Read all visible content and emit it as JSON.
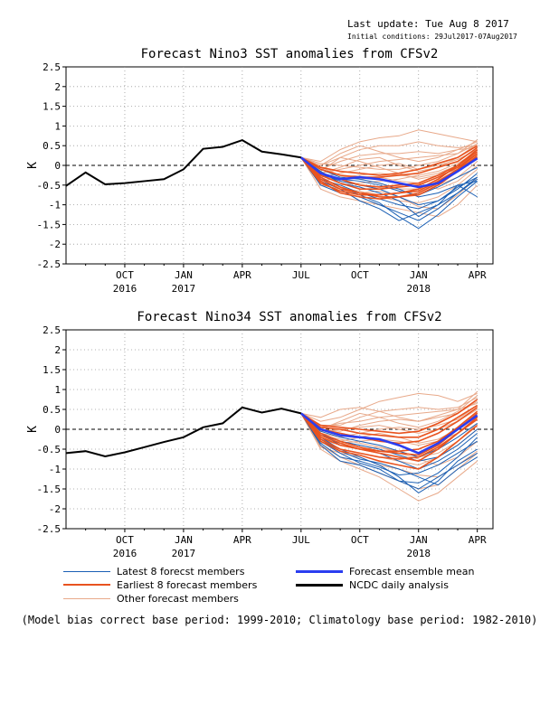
{
  "header": {
    "last_update": "Last update: Tue Aug 8 2017",
    "initial_conditions": "Initial conditions: 29Jul2017-07Aug2017"
  },
  "colors": {
    "latest": "#1a5fb4",
    "earliest": "#e8531f",
    "other": "#e8a98a",
    "mean": "#2b3df0",
    "analysis": "#000000"
  },
  "legend": {
    "latest": "Latest 8 forecst members",
    "earliest": "Earliest 8 forecast members",
    "other": "Other forecast members",
    "mean": "Forecast ensemble mean",
    "analysis": "NCDC daily analysis"
  },
  "footnote": "(Model bias correct base period: 1999-2010; Climatology base period: 1982-2010)",
  "chart_data": [
    {
      "type": "line",
      "title": "Forecast Nino3 SST anomalies from CFSv2",
      "ylabel": "K",
      "ylim": [
        -2.5,
        2.5
      ],
      "yticks": [
        "2.5",
        "2",
        "1.5",
        "1",
        "0.5",
        "0",
        "-0.5",
        "-1",
        "-1.5",
        "-2",
        "-2.5"
      ],
      "xticks": [
        {
          "m": 3,
          "label": "OCT",
          "year": "2016"
        },
        {
          "m": 6,
          "label": "JAN",
          "year": "2017"
        },
        {
          "m": 9,
          "label": "APR",
          "year": ""
        },
        {
          "m": 12,
          "label": "JUL",
          "year": ""
        },
        {
          "m": 15,
          "label": "OCT",
          "year": ""
        },
        {
          "m": 18,
          "label": "JAN",
          "year": "2018"
        },
        {
          "m": 21,
          "label": "APR",
          "year": ""
        }
      ],
      "xlim": [
        0,
        21.8
      ],
      "grid": true,
      "zero_line": "dashed",
      "analysis": [
        [
          0,
          -0.52
        ],
        [
          1,
          -0.18
        ],
        [
          2,
          -0.48
        ],
        [
          3,
          -0.45
        ],
        [
          4,
          -0.4
        ],
        [
          5,
          -0.35
        ],
        [
          6,
          -0.1
        ],
        [
          7,
          0.42
        ],
        [
          8,
          0.47
        ],
        [
          9,
          0.64
        ],
        [
          10,
          0.35
        ],
        [
          11,
          0.28
        ],
        [
          12,
          0.2
        ]
      ],
      "mean": [
        [
          12,
          0.2
        ],
        [
          13,
          -0.2
        ],
        [
          14,
          -0.35
        ],
        [
          15,
          -0.3
        ],
        [
          16,
          -0.35
        ],
        [
          17,
          -0.45
        ],
        [
          18,
          -0.55
        ],
        [
          19,
          -0.45
        ],
        [
          20,
          -0.15
        ],
        [
          21,
          0.18
        ]
      ],
      "members": {
        "latest": [
          [
            0.2,
            -0.5,
            -0.7,
            -0.8,
            -1.0,
            -1.2,
            -1.4,
            -1.1,
            -0.7,
            -0.3
          ],
          [
            0.2,
            -0.3,
            -0.55,
            -0.75,
            -0.95,
            -1.3,
            -1.6,
            -1.25,
            -0.8,
            -0.4
          ],
          [
            0.2,
            -0.2,
            -0.4,
            -0.5,
            -0.6,
            -0.8,
            -1.0,
            -0.9,
            -0.6,
            -0.2
          ],
          [
            0.2,
            -0.4,
            -0.6,
            -0.9,
            -1.1,
            -1.4,
            -1.2,
            -1.0,
            -0.5,
            -0.8
          ],
          [
            0.2,
            -0.1,
            -0.3,
            -0.35,
            -0.45,
            -0.6,
            -0.8,
            -0.7,
            -0.5,
            -0.4
          ],
          [
            0.2,
            -0.35,
            -0.5,
            -0.7,
            -0.85,
            -1.0,
            -1.1,
            -0.9,
            -0.55,
            -0.3
          ],
          [
            0.2,
            -0.15,
            -0.45,
            -0.55,
            -0.7,
            -0.9,
            -1.3,
            -1.0,
            -0.7,
            -0.35
          ],
          [
            0.2,
            -0.25,
            -0.35,
            -0.4,
            -0.5,
            -0.65,
            -0.75,
            -0.55,
            -0.3,
            -0.05
          ]
        ],
        "earliest": [
          [
            0.2,
            -0.45,
            -0.65,
            -0.75,
            -0.75,
            -0.7,
            -0.65,
            -0.4,
            -0.1,
            0.3
          ],
          [
            0.2,
            -0.3,
            -0.55,
            -0.7,
            -0.8,
            -0.8,
            -0.75,
            -0.5,
            -0.15,
            0.25
          ],
          [
            0.2,
            -0.2,
            -0.35,
            -0.5,
            -0.55,
            -0.5,
            -0.45,
            -0.25,
            0.0,
            0.4
          ],
          [
            0.2,
            -0.35,
            -0.6,
            -0.7,
            -0.75,
            -0.7,
            -0.6,
            -0.35,
            0.0,
            0.35
          ],
          [
            0.2,
            -0.1,
            -0.25,
            -0.3,
            -0.3,
            -0.25,
            -0.2,
            -0.05,
            0.1,
            0.45
          ],
          [
            0.2,
            -0.4,
            -0.7,
            -0.8,
            -0.85,
            -0.8,
            -0.7,
            -0.45,
            -0.1,
            0.2
          ],
          [
            0.2,
            -0.05,
            -0.15,
            -0.2,
            -0.25,
            -0.2,
            -0.1,
            0.05,
            0.2,
            0.5
          ],
          [
            0.2,
            -0.25,
            -0.45,
            -0.6,
            -0.6,
            -0.55,
            -0.5,
            -0.3,
            -0.05,
            0.3
          ]
        ],
        "other": [
          [
            0.2,
            0.1,
            0.4,
            0.6,
            0.7,
            0.75,
            0.9,
            0.8,
            0.7,
            0.6
          ],
          [
            0.2,
            0.0,
            0.2,
            0.4,
            0.5,
            0.5,
            0.6,
            0.5,
            0.45,
            0.5
          ],
          [
            0.2,
            -0.1,
            0.1,
            0.25,
            0.3,
            0.3,
            0.35,
            0.3,
            0.4,
            0.6
          ],
          [
            0.2,
            -0.2,
            -0.1,
            0.0,
            0.1,
            0.15,
            0.2,
            0.25,
            0.3,
            0.55
          ],
          [
            0.2,
            -0.3,
            -0.2,
            -0.1,
            0.0,
            0.05,
            -0.1,
            0.0,
            0.15,
            0.4
          ],
          [
            0.2,
            -0.4,
            -0.3,
            -0.25,
            -0.2,
            -0.25,
            -0.3,
            -0.2,
            0.0,
            0.3
          ],
          [
            0.2,
            -0.25,
            -0.4,
            -0.5,
            -0.55,
            -0.6,
            -0.6,
            -0.5,
            -0.3,
            0.1
          ],
          [
            0.2,
            -0.5,
            -0.6,
            -0.65,
            -0.8,
            -0.9,
            -0.95,
            -0.8,
            -0.5,
            -0.1
          ],
          [
            0.2,
            -0.6,
            -0.8,
            -0.9,
            -1.0,
            -1.1,
            -1.2,
            -1.3,
            -1.0,
            -0.5
          ],
          [
            0.2,
            0.05,
            0.0,
            -0.05,
            -0.1,
            -0.1,
            0.0,
            0.1,
            0.3,
            0.65
          ],
          [
            0.2,
            -0.15,
            0.2,
            0.1,
            -0.05,
            -0.2,
            -0.35,
            -0.25,
            -0.1,
            0.2
          ],
          [
            0.2,
            -0.35,
            -0.5,
            -0.45,
            -0.4,
            -0.35,
            -0.25,
            -0.15,
            0.05,
            0.35
          ],
          [
            0.2,
            -0.05,
            -0.25,
            -0.35,
            -0.3,
            -0.4,
            -0.45,
            -0.6,
            -0.4,
            0.0
          ],
          [
            0.2,
            0.0,
            0.3,
            0.5,
            0.35,
            0.2,
            0.1,
            0.2,
            0.4,
            0.45
          ],
          [
            0.2,
            -0.45,
            -0.65,
            -0.7,
            -0.65,
            -0.8,
            -1.05,
            -1.1,
            -0.75,
            -0.3
          ],
          [
            0.2,
            -0.2,
            -0.05,
            0.15,
            0.2,
            0.0,
            -0.15,
            -0.05,
            0.2,
            0.55
          ]
        ]
      }
    },
    {
      "type": "line",
      "title": "Forecast Nino34 SST anomalies from CFSv2",
      "ylabel": "K",
      "ylim": [
        -2.5,
        2.5
      ],
      "yticks": [
        "2.5",
        "2",
        "1.5",
        "1",
        "0.5",
        "0",
        "-0.5",
        "-1",
        "-1.5",
        "-2",
        "-2.5"
      ],
      "xticks": [
        {
          "m": 3,
          "label": "OCT",
          "year": "2016"
        },
        {
          "m": 6,
          "label": "JAN",
          "year": "2017"
        },
        {
          "m": 9,
          "label": "APR",
          "year": ""
        },
        {
          "m": 12,
          "label": "JUL",
          "year": ""
        },
        {
          "m": 15,
          "label": "OCT",
          "year": ""
        },
        {
          "m": 18,
          "label": "JAN",
          "year": "2018"
        },
        {
          "m": 21,
          "label": "APR",
          "year": ""
        }
      ],
      "xlim": [
        0,
        21.8
      ],
      "grid": true,
      "zero_line": "dashed",
      "analysis": [
        [
          0,
          -0.6
        ],
        [
          1,
          -0.55
        ],
        [
          2,
          -0.68
        ],
        [
          3,
          -0.58
        ],
        [
          4,
          -0.45
        ],
        [
          5,
          -0.32
        ],
        [
          6,
          -0.2
        ],
        [
          7,
          0.05
        ],
        [
          8,
          0.15
        ],
        [
          9,
          0.55
        ],
        [
          10,
          0.42
        ],
        [
          11,
          0.52
        ],
        [
          12,
          0.4
        ]
      ],
      "mean": [
        [
          12,
          0.4
        ],
        [
          13,
          0.0
        ],
        [
          14,
          -0.15
        ],
        [
          15,
          -0.2
        ],
        [
          16,
          -0.25
        ],
        [
          17,
          -0.4
        ],
        [
          18,
          -0.6
        ],
        [
          19,
          -0.35
        ],
        [
          20,
          0.0
        ],
        [
          21,
          0.35
        ]
      ],
      "members": {
        "latest": [
          [
            0.4,
            -0.4,
            -0.8,
            -0.9,
            -1.1,
            -1.3,
            -1.5,
            -1.2,
            -0.9,
            -0.6
          ],
          [
            0.4,
            -0.2,
            -0.5,
            -0.7,
            -0.9,
            -1.2,
            -1.6,
            -1.3,
            -0.8,
            -0.5
          ],
          [
            0.4,
            -0.3,
            -0.6,
            -0.85,
            -1.0,
            -1.3,
            -1.35,
            -1.1,
            -0.7,
            -0.2
          ],
          [
            0.4,
            -0.1,
            -0.4,
            -0.5,
            -0.6,
            -0.8,
            -1.0,
            -0.8,
            -0.5,
            -0.1
          ],
          [
            0.4,
            -0.25,
            -0.55,
            -0.75,
            -0.85,
            -1.0,
            -1.2,
            -1.4,
            -1.0,
            -0.7
          ],
          [
            0.4,
            -0.15,
            -0.3,
            -0.4,
            -0.5,
            -0.65,
            -0.8,
            -0.7,
            -0.4,
            0.0
          ],
          [
            0.4,
            -0.35,
            -0.7,
            -0.8,
            -0.95,
            -1.15,
            -1.1,
            -0.9,
            -0.6,
            -0.3
          ],
          [
            0.4,
            -0.05,
            -0.2,
            -0.3,
            -0.4,
            -0.55,
            -0.7,
            -0.5,
            -0.2,
            0.15
          ]
        ],
        "earliest": [
          [
            0.4,
            -0.2,
            -0.4,
            -0.5,
            -0.6,
            -0.7,
            -0.8,
            -0.5,
            -0.1,
            0.3
          ],
          [
            0.4,
            -0.1,
            -0.3,
            -0.45,
            -0.55,
            -0.6,
            -0.65,
            -0.4,
            0.0,
            0.4
          ],
          [
            0.4,
            0.0,
            -0.1,
            -0.2,
            -0.3,
            -0.35,
            -0.3,
            -0.1,
            0.2,
            0.55
          ],
          [
            0.4,
            -0.15,
            -0.35,
            -0.5,
            -0.55,
            -0.55,
            -0.5,
            -0.3,
            0.05,
            0.45
          ],
          [
            0.4,
            0.1,
            0.05,
            0.0,
            -0.05,
            -0.1,
            -0.05,
            0.15,
            0.4,
            0.75
          ],
          [
            0.4,
            -0.25,
            -0.5,
            -0.6,
            -0.7,
            -0.75,
            -0.7,
            -0.45,
            -0.1,
            0.25
          ],
          [
            0.4,
            0.05,
            0.0,
            -0.1,
            -0.15,
            -0.2,
            -0.2,
            0.0,
            0.3,
            0.6
          ],
          [
            0.4,
            -0.3,
            -0.55,
            -0.65,
            -0.8,
            -0.9,
            -1.0,
            -0.7,
            -0.3,
            0.1
          ]
        ],
        "other": [
          [
            0.4,
            0.2,
            0.3,
            0.5,
            0.7,
            0.8,
            0.9,
            0.85,
            0.7,
            0.9
          ],
          [
            0.4,
            0.1,
            0.1,
            0.3,
            0.45,
            0.5,
            0.55,
            0.5,
            0.55,
            0.8
          ],
          [
            0.4,
            0.0,
            -0.05,
            0.1,
            0.2,
            0.25,
            0.2,
            0.3,
            0.4,
            0.7
          ],
          [
            0.4,
            -0.1,
            -0.2,
            -0.1,
            0.0,
            0.05,
            0.0,
            0.1,
            0.25,
            0.6
          ],
          [
            0.4,
            -0.2,
            -0.35,
            -0.3,
            -0.25,
            -0.3,
            -0.4,
            -0.3,
            -0.1,
            0.3
          ],
          [
            0.4,
            -0.3,
            -0.5,
            -0.6,
            -0.7,
            -0.8,
            -0.9,
            -0.7,
            -0.4,
            0.0
          ],
          [
            0.4,
            -0.4,
            -0.7,
            -0.9,
            -1.1,
            -1.3,
            -1.5,
            -1.4,
            -1.0,
            -0.6
          ],
          [
            0.4,
            -0.5,
            -0.8,
            -1.0,
            -1.2,
            -1.5,
            -1.8,
            -1.6,
            -1.2,
            -0.8
          ],
          [
            0.4,
            0.05,
            0.15,
            0.2,
            0.3,
            0.35,
            0.4,
            0.45,
            0.5,
            0.95
          ],
          [
            0.4,
            -0.05,
            0.0,
            0.05,
            0.1,
            0.0,
            -0.1,
            0.0,
            0.2,
            0.5
          ],
          [
            0.4,
            -0.15,
            -0.25,
            -0.35,
            -0.45,
            -0.55,
            -0.7,
            -0.6,
            -0.3,
            0.15
          ],
          [
            0.4,
            -0.25,
            -0.4,
            -0.5,
            -0.45,
            -0.6,
            -0.75,
            -0.9,
            -0.7,
            -0.3
          ],
          [
            0.4,
            0.3,
            0.5,
            0.55,
            0.45,
            0.3,
            0.2,
            0.35,
            0.5,
            0.65
          ],
          [
            0.4,
            -0.45,
            -0.6,
            -0.7,
            -0.9,
            -1.0,
            -1.15,
            -1.2,
            -0.9,
            -0.55
          ],
          [
            0.4,
            0.0,
            0.2,
            0.4,
            0.3,
            0.15,
            0.05,
            0.2,
            0.45,
            0.85
          ],
          [
            0.4,
            -0.35,
            -0.3,
            -0.2,
            -0.1,
            -0.2,
            -0.35,
            -0.25,
            0.0,
            0.4
          ]
        ]
      }
    }
  ]
}
